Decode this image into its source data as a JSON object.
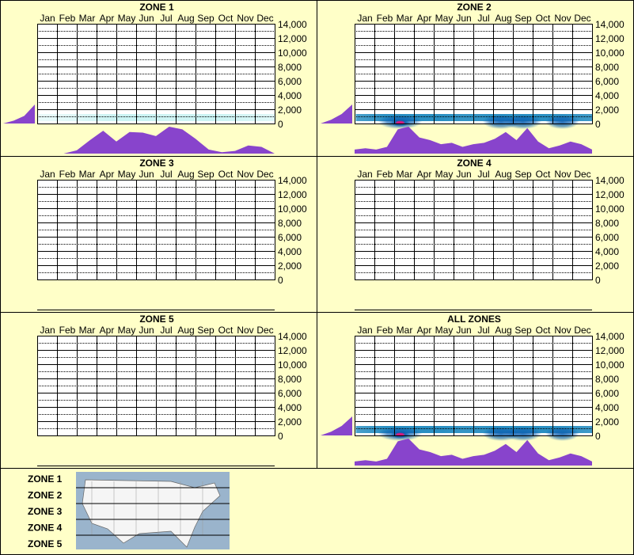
{
  "chart_data": {
    "type": "heatmap",
    "months": [
      "Jan",
      "Feb",
      "Mar",
      "Apr",
      "May",
      "Jun",
      "Jul",
      "Aug",
      "Sep",
      "Oct",
      "Nov",
      "Dec"
    ],
    "yticks": [
      "14,000",
      "12,000",
      "10,000",
      "8,000",
      "6,000",
      "4,000",
      "2,000",
      "0"
    ],
    "ylim": [
      0,
      14000
    ],
    "colors": {
      "background": "#ffffc8",
      "plot_bg": "#ffffff",
      "profile_fill": "#8844cc",
      "heat_low": "#a8ecec",
      "heat_mid": "#0b5fb0",
      "heat_high": "#e0147a"
    },
    "panels": [
      {
        "title": "ZONE 1",
        "elevation_profile": [
          0.0,
          0.15,
          0.4,
          1.0
        ],
        "monthly_profile": [
          0.0,
          0.0,
          0.0,
          0.12,
          0.5,
          0.85,
          0.45,
          0.8,
          0.78,
          0.65,
          1.0,
          0.9,
          0.55,
          0.15,
          0.05,
          0.1,
          0.3,
          0.25,
          0.0
        ],
        "heat_band": [
          0.0,
          0.05,
          0.15,
          0.3,
          0.35,
          0.35,
          0.3,
          0.32,
          0.35,
          0.3,
          0.2,
          0.1
        ],
        "hotspots": []
      },
      {
        "title": "ZONE 2",
        "elevation_profile": [
          0.0,
          0.2,
          0.5,
          1.0
        ],
        "monthly_profile": [
          0.15,
          0.2,
          0.15,
          0.25,
          0.9,
          1.0,
          0.6,
          0.5,
          0.35,
          0.4,
          0.25,
          0.35,
          0.4,
          0.55,
          0.8,
          0.5,
          0.95,
          0.45,
          0.2,
          0.3,
          0.45,
          0.35,
          0.15
        ],
        "heat_band": [
          0.6,
          0.7,
          0.85,
          0.8,
          0.75,
          0.7,
          0.72,
          0.78,
          0.8,
          0.75,
          0.7,
          0.65
        ],
        "hotspots": [
          {
            "month": 2.3,
            "intensity": 1.0
          },
          {
            "month": 7.4,
            "intensity": 0.55
          },
          {
            "month": 8.5,
            "intensity": 0.6
          },
          {
            "month": 10.5,
            "intensity": 0.35
          }
        ]
      },
      {
        "title": "ZONE 3",
        "elevation_profile": [],
        "monthly_profile": [],
        "heat_band": [],
        "hotspots": []
      },
      {
        "title": "ZONE 4",
        "elevation_profile": [],
        "monthly_profile": [],
        "heat_band": [],
        "hotspots": []
      },
      {
        "title": "ZONE 5",
        "elevation_profile": [],
        "monthly_profile": [],
        "heat_band": [],
        "hotspots": []
      },
      {
        "title": "ALL ZONES",
        "elevation_profile": [
          0.0,
          0.2,
          0.5,
          1.0
        ],
        "monthly_profile": [
          0.15,
          0.2,
          0.15,
          0.25,
          0.9,
          1.0,
          0.6,
          0.5,
          0.35,
          0.4,
          0.25,
          0.35,
          0.4,
          0.55,
          0.8,
          0.5,
          0.95,
          0.45,
          0.2,
          0.3,
          0.45,
          0.35,
          0.15
        ],
        "heat_band": [
          0.6,
          0.7,
          0.85,
          0.8,
          0.75,
          0.7,
          0.72,
          0.78,
          0.8,
          0.75,
          0.7,
          0.65
        ],
        "hotspots": [
          {
            "month": 2.3,
            "intensity": 1.0
          },
          {
            "month": 7.4,
            "intensity": 0.55
          },
          {
            "month": 8.5,
            "intensity": 0.6
          },
          {
            "month": 10.5,
            "intensity": 0.35
          }
        ]
      }
    ]
  },
  "legend": {
    "zones": [
      "ZONE 1",
      "ZONE 2",
      "ZONE 3",
      "ZONE 4",
      "ZONE 5"
    ],
    "map_icon": "us-map"
  }
}
